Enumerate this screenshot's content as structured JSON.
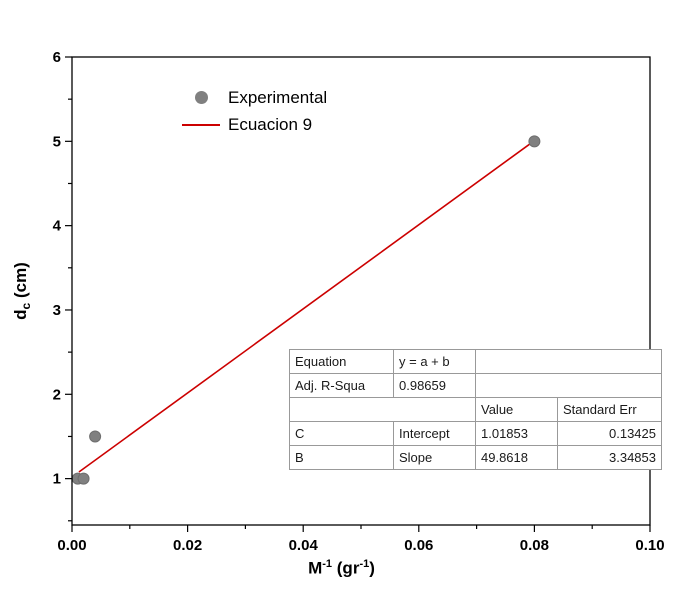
{
  "figure": {
    "background": "#ffffff"
  },
  "axes": {
    "x_title": {
      "base1": "M",
      "sup1": "-1",
      "base2": " (gr",
      "sup2": "-1",
      "base3": ")"
    },
    "y_title": {
      "base1": "d",
      "sub1": "c",
      "base2": " (cm)"
    }
  },
  "legend": {
    "entries": [
      {
        "label": "Experimental",
        "marker": "circle",
        "color": "#808080"
      },
      {
        "label": "Ecuacion 9",
        "marker": "line",
        "color": "#cc0000"
      }
    ]
  },
  "stats_table": {
    "equation_label": "Equation",
    "equation_value": "y = a + b",
    "adj_r_label": "Adj. R-Squa",
    "adj_r_value": "0.98659",
    "value_header": "Value",
    "stderr_header": "Standard Err",
    "c_name": "C",
    "c_param": "Intercept",
    "c_value": "1.01853",
    "c_stderr": "0.13425",
    "b_name": "B",
    "b_param": "Slope",
    "b_value": "49.8618",
    "b_stderr": "3.34853"
  },
  "chart_data": {
    "type": "scatter",
    "title": "",
    "xlabel": "M^-1 (gr^-1)",
    "ylabel": "d_c (cm)",
    "xlim": [
      0.0,
      0.1
    ],
    "ylim": [
      0.45,
      6.0
    ],
    "x_ticks": [
      0.0,
      0.02,
      0.04,
      0.06,
      0.08,
      0.1
    ],
    "x_tick_labels": [
      "0.00",
      "0.02",
      "0.04",
      "0.06",
      "0.08",
      "0.10"
    ],
    "y_ticks": [
      1,
      2,
      3,
      4,
      5,
      6
    ],
    "y_tick_labels": [
      "1",
      "2",
      "3",
      "4",
      "5",
      "6"
    ],
    "x_minor_step": 0.01,
    "y_minor_step": 0.5,
    "grid": false,
    "legend_position": "top-left-inside",
    "series": [
      {
        "name": "Experimental",
        "type": "scatter",
        "color": "#808080",
        "edge_color": "#6e6e6e",
        "points": [
          [
            0.001,
            1.0
          ],
          [
            0.002,
            1.0
          ],
          [
            0.004,
            1.5
          ],
          [
            0.08,
            5.0
          ]
        ]
      },
      {
        "name": "Ecuacion 9",
        "type": "line",
        "color": "#cc0000",
        "fit": {
          "intercept": 1.01853,
          "slope": 49.8618
        },
        "x_range": [
          0.0012,
          0.08
        ]
      }
    ]
  }
}
